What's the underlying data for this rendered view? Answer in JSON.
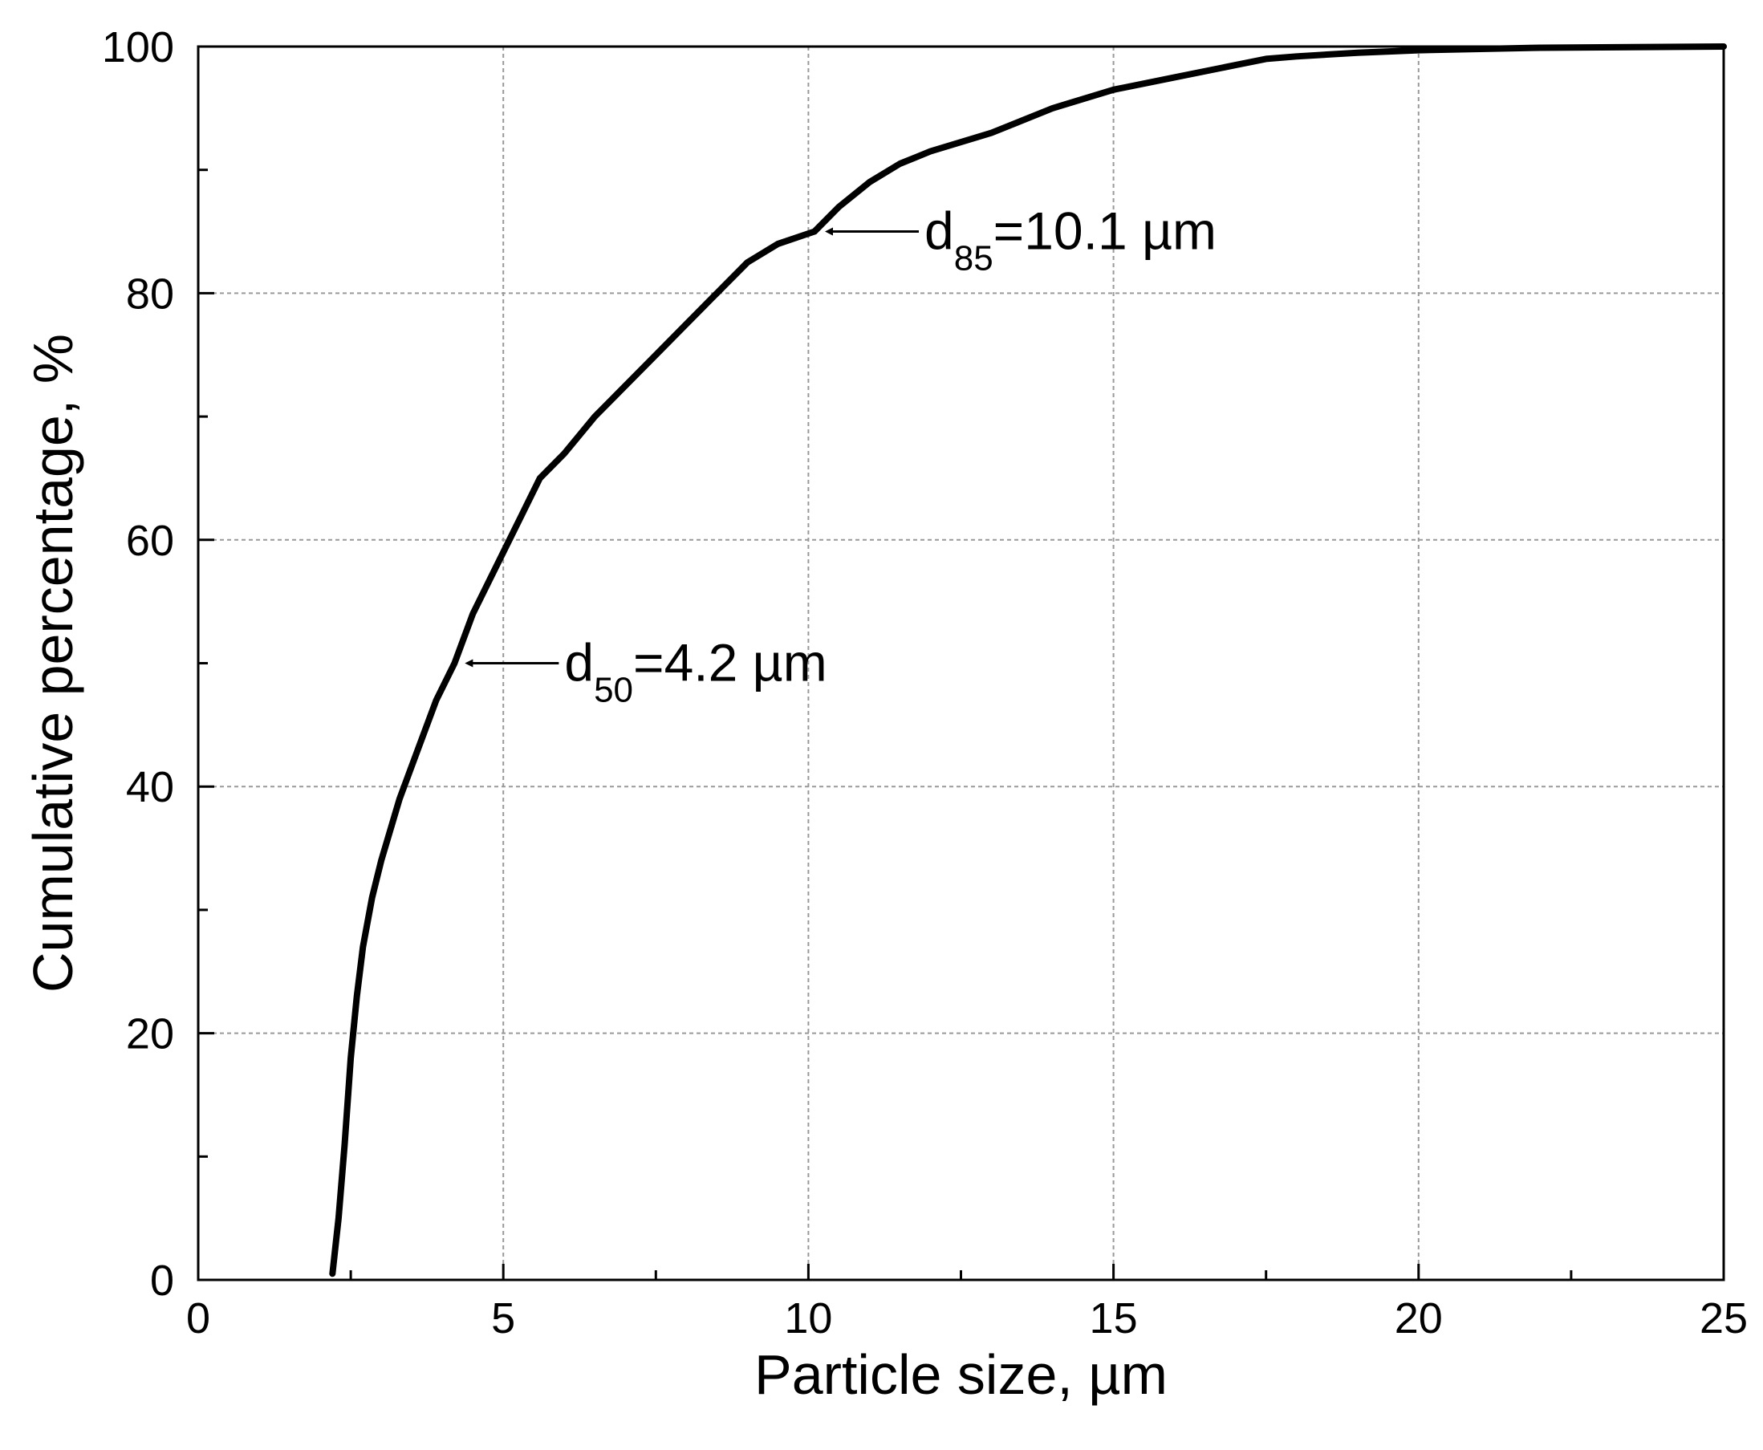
{
  "chart_data": {
    "type": "line",
    "xlabel": "Particle size, µm",
    "ylabel": "Cumulative percentage, %",
    "xlim": [
      0,
      25
    ],
    "ylim": [
      0,
      100
    ],
    "x_ticks": [
      0,
      5,
      10,
      15,
      20,
      25
    ],
    "y_ticks": [
      0,
      20,
      40,
      60,
      80,
      100
    ],
    "x_minor_step": 2.5,
    "y_minor_step": 10,
    "grid": true,
    "line_color": "#000000",
    "grid_color": "#999999",
    "series": [
      {
        "x": [
          2.2,
          2.3,
          2.4,
          2.5,
          2.6,
          2.7,
          2.85,
          3.0,
          3.3,
          3.6,
          3.9,
          4.2,
          4.5,
          4.8,
          5.0,
          5.3,
          5.6,
          6.0,
          6.5,
          7.0,
          7.5,
          8.0,
          8.5,
          9.0,
          9.5,
          10.1,
          10.5,
          11.0,
          11.5,
          12.0,
          13.0,
          14.0,
          15.0,
          16.0,
          17.0,
          17.5,
          18.0,
          19.0,
          20.0,
          22.0,
          25.0
        ],
        "y": [
          0.5,
          5,
          11,
          18,
          23,
          27,
          31,
          34,
          39,
          43,
          47,
          50,
          54,
          57,
          59,
          62,
          65,
          67,
          70,
          72.5,
          75,
          77.5,
          80,
          82.5,
          84,
          85,
          87,
          89,
          90.5,
          91.5,
          93,
          95,
          96.5,
          97.5,
          98.5,
          99,
          99.2,
          99.5,
          99.7,
          99.9,
          100
        ]
      }
    ],
    "annotations": [
      {
        "base": "d",
        "sub": "50",
        "rest": "=4.2 µm",
        "x": 4.2,
        "y": 50
      },
      {
        "base": "d",
        "sub": "85",
        "rest": "=10.1 µm",
        "x": 10.1,
        "y": 85
      }
    ]
  }
}
